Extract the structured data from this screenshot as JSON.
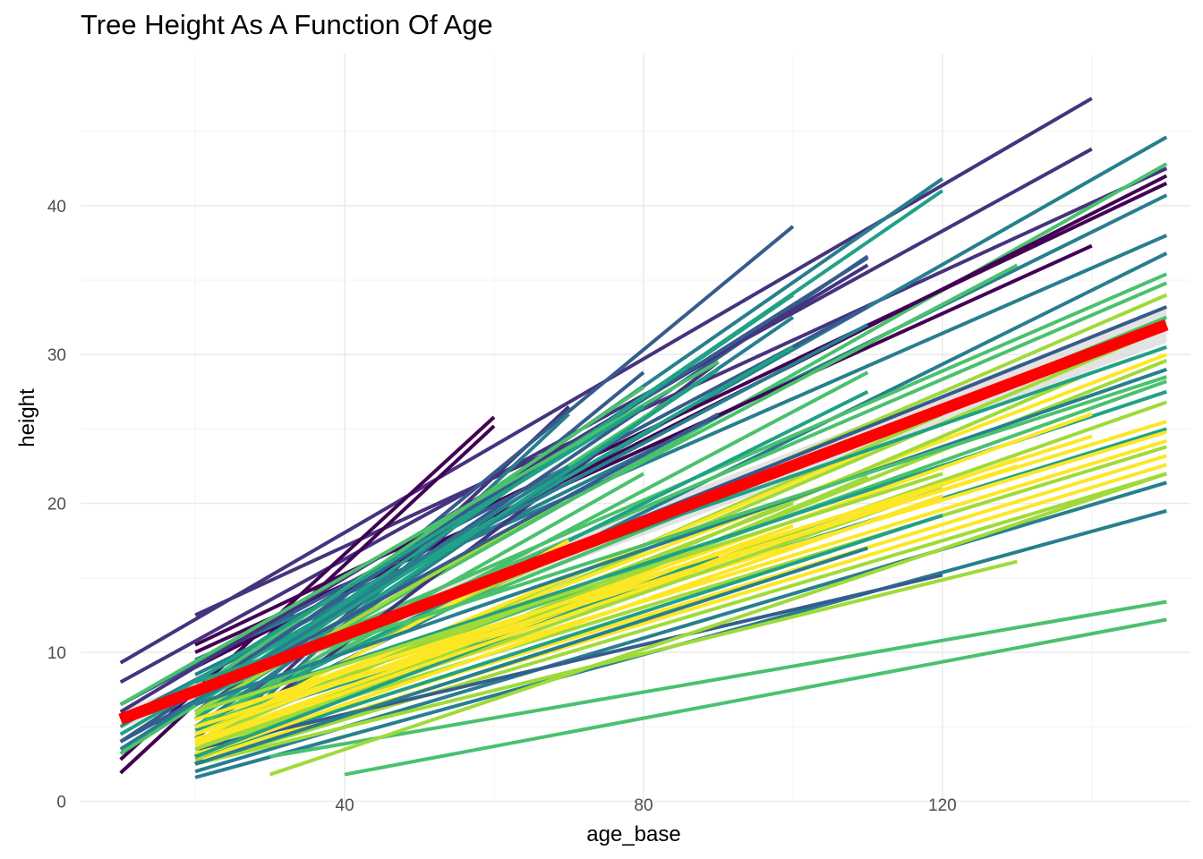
{
  "chart_data": {
    "type": "line",
    "title": "Tree Height As A Function Of Age",
    "xlabel": "age_base",
    "ylabel": "height",
    "xlim": [
      4.65,
      153.2
    ],
    "ylim": [
      -0.15,
      50.2
    ],
    "x_ticks": [
      40,
      80,
      120
    ],
    "y_ticks": [
      0,
      10,
      20,
      30,
      40
    ],
    "grid": true,
    "legend": "none",
    "colors": {
      "palette": [
        "#440154",
        "#46337e",
        "#365c8d",
        "#277f8e",
        "#1fa187",
        "#4ac16d",
        "#a0da39",
        "#fde725"
      ],
      "trend": "#ff0000",
      "ribbon": "#d0d0d0",
      "grid_major": "#ebebeb",
      "grid_minor": "#f5f5f5"
    },
    "trend_line": {
      "x": [
        10,
        150
      ],
      "y": [
        5.5,
        32.0
      ]
    },
    "series": [
      {
        "x": [
          10,
          140
        ],
        "y": [
          9.3,
          47.2
        ],
        "color": "#46337e"
      },
      {
        "x": [
          10,
          140
        ],
        "y": [
          8.0,
          43.8
        ],
        "color": "#46337e"
      },
      {
        "x": [
          20,
          150
        ],
        "y": [
          12.5,
          42.5
        ],
        "color": "#46337e"
      },
      {
        "x": [
          10,
          60
        ],
        "y": [
          2.8,
          25.8
        ],
        "color": "#440154"
      },
      {
        "x": [
          10,
          60
        ],
        "y": [
          1.9,
          25.2
        ],
        "color": "#440154"
      },
      {
        "x": [
          20,
          70
        ],
        "y": [
          3.0,
          26.5
        ],
        "color": "#46337e"
      },
      {
        "x": [
          20,
          100
        ],
        "y": [
          5.5,
          38.6
        ],
        "color": "#365c8d"
      },
      {
        "x": [
          20,
          120
        ],
        "y": [
          7.0,
          41.8
        ],
        "color": "#277f8e"
      },
      {
        "x": [
          20,
          150
        ],
        "y": [
          7.5,
          44.6
        ],
        "color": "#277f8e"
      },
      {
        "x": [
          20,
          120
        ],
        "y": [
          6.5,
          41.0
        ],
        "color": "#1fa187"
      },
      {
        "x": [
          20,
          150
        ],
        "y": [
          6.0,
          42.8
        ],
        "color": "#4ac16d"
      },
      {
        "x": [
          20,
          150
        ],
        "y": [
          9.0,
          42.0
        ],
        "color": "#440154"
      },
      {
        "x": [
          20,
          150
        ],
        "y": [
          10.5,
          41.5
        ],
        "color": "#440154"
      },
      {
        "x": [
          20,
          150
        ],
        "y": [
          8.5,
          40.7
        ],
        "color": "#277f8e"
      },
      {
        "x": [
          20,
          140
        ],
        "y": [
          10.0,
          37.3
        ],
        "color": "#440154"
      },
      {
        "x": [
          20,
          150
        ],
        "y": [
          9.5,
          38.0
        ],
        "color": "#277f8e"
      },
      {
        "x": [
          20,
          150
        ],
        "y": [
          4.5,
          36.8
        ],
        "color": "#277f8e"
      },
      {
        "x": [
          20,
          110
        ],
        "y": [
          6.0,
          36.6
        ],
        "color": "#365c8d"
      },
      {
        "x": [
          20,
          150
        ],
        "y": [
          7.2,
          35.4
        ],
        "color": "#4ac16d"
      },
      {
        "x": [
          20,
          150
        ],
        "y": [
          6.8,
          34.8
        ],
        "color": "#4ac16d"
      },
      {
        "x": [
          20,
          150
        ],
        "y": [
          5.8,
          34.0
        ],
        "color": "#a0da39"
      },
      {
        "x": [
          20,
          150
        ],
        "y": [
          7.0,
          33.2
        ],
        "color": "#365c8d"
      },
      {
        "x": [
          20,
          150
        ],
        "y": [
          6.0,
          32.5
        ],
        "color": "#4ac16d"
      },
      {
        "x": [
          20,
          150
        ],
        "y": [
          4.0,
          31.8
        ],
        "color": "#a0da39"
      },
      {
        "x": [
          20,
          110
        ],
        "y": [
          5.0,
          28.8
        ],
        "color": "#4ac16d"
      },
      {
        "x": [
          20,
          90
        ],
        "y": [
          3.0,
          29.5
        ],
        "color": "#46337e"
      },
      {
        "x": [
          20,
          80
        ],
        "y": [
          4.2,
          28.8
        ],
        "color": "#365c8d"
      },
      {
        "x": [
          20,
          70
        ],
        "y": [
          2.5,
          26.0
        ],
        "color": "#277f8e"
      },
      {
        "x": [
          20,
          150
        ],
        "y": [
          5.0,
          30.0
        ],
        "color": "#fde725"
      },
      {
        "x": [
          20,
          150
        ],
        "y": [
          3.5,
          29.6
        ],
        "color": "#a0da39"
      },
      {
        "x": [
          20,
          140
        ],
        "y": [
          3.0,
          28.8
        ],
        "color": "#a0da39"
      },
      {
        "x": [
          20,
          150
        ],
        "y": [
          5.0,
          28.2
        ],
        "color": "#4ac16d"
      },
      {
        "x": [
          20,
          150
        ],
        "y": [
          4.0,
          26.8
        ],
        "color": "#a0da39"
      },
      {
        "x": [
          20,
          150
        ],
        "y": [
          5.5,
          25.5
        ],
        "color": "#fde725"
      },
      {
        "x": [
          20,
          150
        ],
        "y": [
          4.8,
          25.0
        ],
        "color": "#1fa187"
      },
      {
        "x": [
          20,
          150
        ],
        "y": [
          5.0,
          24.8
        ],
        "color": "#fde725"
      },
      {
        "x": [
          20,
          150
        ],
        "y": [
          4.2,
          24.2
        ],
        "color": "#fde725"
      },
      {
        "x": [
          20,
          150
        ],
        "y": [
          3.8,
          23.8
        ],
        "color": "#a0da39"
      },
      {
        "x": [
          20,
          150
        ],
        "y": [
          3.2,
          23.2
        ],
        "color": "#fde725"
      },
      {
        "x": [
          20,
          150
        ],
        "y": [
          2.8,
          22.6
        ],
        "color": "#fde725"
      },
      {
        "x": [
          20,
          150
        ],
        "y": [
          2.5,
          22.0
        ],
        "color": "#a0da39"
      },
      {
        "x": [
          20,
          150
        ],
        "y": [
          2.0,
          21.4
        ],
        "color": "#277f8e"
      },
      {
        "x": [
          20,
          150
        ],
        "y": [
          1.6,
          19.5
        ],
        "color": "#277f8e"
      },
      {
        "x": [
          20,
          110
        ],
        "y": [
          2.8,
          21.8
        ],
        "color": "#a0da39"
      },
      {
        "x": [
          20,
          120
        ],
        "y": [
          3.0,
          19.2
        ],
        "color": "#1fa187"
      },
      {
        "x": [
          20,
          130
        ],
        "y": [
          2.5,
          16.1
        ],
        "color": "#a0da39"
      },
      {
        "x": [
          20,
          120
        ],
        "y": [
          3.5,
          15.2
        ],
        "color": "#365c8d"
      },
      {
        "x": [
          30,
          150
        ],
        "y": [
          3.0,
          13.4
        ],
        "color": "#4ac16d"
      },
      {
        "x": [
          40,
          150
        ],
        "y": [
          1.8,
          12.2
        ],
        "color": "#4ac16d"
      },
      {
        "x": [
          30,
          150
        ],
        "y": [
          1.8,
          22.0
        ],
        "color": "#a0da39"
      },
      {
        "x": [
          10,
          110
        ],
        "y": [
          6.5,
          33.2
        ],
        "color": "#365c8d"
      },
      {
        "x": [
          10,
          110
        ],
        "y": [
          5.5,
          32.0
        ],
        "color": "#277f8e"
      },
      {
        "x": [
          10,
          100
        ],
        "y": [
          4.5,
          30.5
        ],
        "color": "#1fa187"
      },
      {
        "x": [
          10,
          90
        ],
        "y": [
          3.2,
          29.0
        ],
        "color": "#4ac16d"
      },
      {
        "x": [
          10,
          80
        ],
        "y": [
          4.0,
          27.0
        ],
        "color": "#365c8d"
      },
      {
        "x": [
          10,
          110
        ],
        "y": [
          6.0,
          36.0
        ],
        "color": "#46337e"
      },
      {
        "x": [
          20,
          130
        ],
        "y": [
          7.0,
          36.0
        ],
        "color": "#4ac16d"
      },
      {
        "x": [
          20,
          110
        ],
        "y": [
          8.0,
          36.5
        ],
        "color": "#365c8d"
      },
      {
        "x": [
          20,
          100
        ],
        "y": [
          6.5,
          34.0
        ],
        "color": "#1fa187"
      },
      {
        "x": [
          20,
          100
        ],
        "y": [
          5.0,
          32.5
        ],
        "color": "#277f8e"
      },
      {
        "x": [
          20,
          90
        ],
        "y": [
          5.5,
          29.0
        ],
        "color": "#1fa187"
      },
      {
        "x": [
          20,
          80
        ],
        "y": [
          7.5,
          27.8
        ],
        "color": "#4ac16d"
      },
      {
        "x": [
          20,
          110
        ],
        "y": [
          5.0,
          27.5
        ],
        "color": "#1fa187"
      },
      {
        "x": [
          20,
          120
        ],
        "y": [
          4.0,
          26.0
        ],
        "color": "#a0da39"
      },
      {
        "x": [
          20,
          110
        ],
        "y": [
          4.5,
          23.5
        ],
        "color": "#fde725"
      },
      {
        "x": [
          20,
          120
        ],
        "y": [
          3.5,
          21.0
        ],
        "color": "#a0da39"
      },
      {
        "x": [
          20,
          120
        ],
        "y": [
          3.0,
          20.5
        ],
        "color": "#fde725"
      },
      {
        "x": [
          20,
          100
        ],
        "y": [
          4.0,
          18.5
        ],
        "color": "#fde725"
      },
      {
        "x": [
          20,
          100
        ],
        "y": [
          4.5,
          20.0
        ],
        "color": "#a0da39"
      },
      {
        "x": [
          20,
          110
        ],
        "y": [
          2.5,
          17.0
        ],
        "color": "#277f8e"
      },
      {
        "x": [
          20,
          90
        ],
        "y": [
          3.0,
          16.5
        ],
        "color": "#1fa187"
      },
      {
        "x": [
          20,
          80
        ],
        "y": [
          5.0,
          22.0
        ],
        "color": "#4ac16d"
      },
      {
        "x": [
          20,
          70
        ],
        "y": [
          6.0,
          20.5
        ],
        "color": "#a0da39"
      },
      {
        "x": [
          20,
          70
        ],
        "y": [
          4.0,
          17.5
        ],
        "color": "#fde725"
      },
      {
        "x": [
          20,
          60
        ],
        "y": [
          6.5,
          19.0
        ],
        "color": "#1fa187"
      },
      {
        "x": [
          20,
          150
        ],
        "y": [
          8.0,
          30.5
        ],
        "color": "#1fa187"
      },
      {
        "x": [
          20,
          150
        ],
        "y": [
          6.5,
          29.0
        ],
        "color": "#277f8e"
      },
      {
        "x": [
          20,
          150
        ],
        "y": [
          7.5,
          28.5
        ],
        "color": "#4ac16d"
      },
      {
        "x": [
          20,
          150
        ],
        "y": [
          6.0,
          27.5
        ],
        "color": "#1fa187"
      },
      {
        "x": [
          20,
          140
        ],
        "y": [
          4.5,
          26.0
        ],
        "color": "#fde725"
      },
      {
        "x": [
          20,
          130
        ],
        "y": [
          3.8,
          23.0
        ],
        "color": "#fde725"
      },
      {
        "x": [
          20,
          140
        ],
        "y": [
          5.5,
          24.5
        ],
        "color": "#fde725"
      },
      {
        "x": [
          20,
          130
        ],
        "y": [
          5.0,
          22.5
        ],
        "color": "#fde725"
      },
      {
        "x": [
          20,
          120
        ],
        "y": [
          6.0,
          22.0
        ],
        "color": "#a0da39"
      },
      {
        "x": [
          10,
          90
        ],
        "y": [
          6.5,
          29.5
        ],
        "color": "#4ac16d"
      },
      {
        "x": [
          10,
          80
        ],
        "y": [
          5.0,
          26.5
        ],
        "color": "#1fa187"
      },
      {
        "x": [
          10,
          90
        ],
        "y": [
          4.0,
          26.0
        ],
        "color": "#365c8d"
      },
      {
        "x": [
          10,
          70
        ],
        "y": [
          3.5,
          22.5
        ],
        "color": "#277f8e"
      }
    ]
  }
}
